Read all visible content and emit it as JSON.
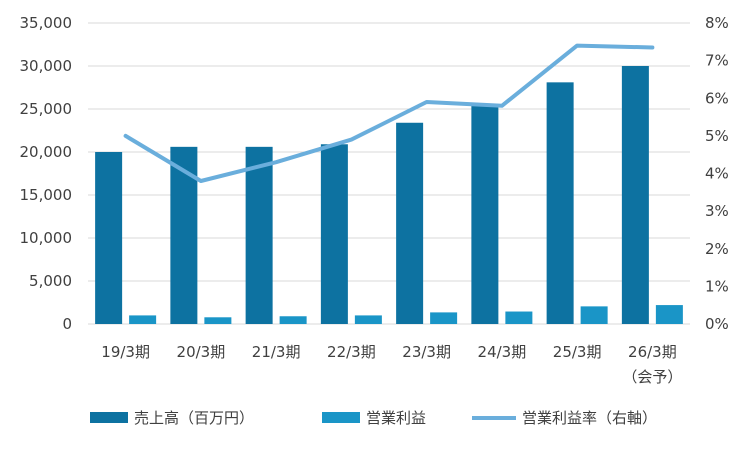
{
  "chart_data": {
    "type": "bar",
    "categories": [
      "19/3期",
      "20/3期",
      "21/3期",
      "22/3期",
      "23/3期",
      "24/3期",
      "25/3期",
      "26/3期"
    ],
    "category_sublabels": [
      "",
      "",
      "",
      "",
      "",
      "",
      "",
      "（会予）"
    ],
    "series": [
      {
        "name": "売上高（百万円）",
        "type": "bar",
        "axis": "left",
        "color": "#0d72a1",
        "values": [
          20000,
          20600,
          20600,
          20900,
          23400,
          25500,
          28100,
          30000
        ]
      },
      {
        "name": "営業利益",
        "type": "bar",
        "axis": "left",
        "color": "#1a95c7",
        "values": [
          1000,
          780,
          900,
          1000,
          1350,
          1450,
          2050,
          2200
        ]
      },
      {
        "name": "営業利益率（右軸）",
        "type": "line",
        "axis": "right",
        "color": "#6aaedc",
        "values": [
          5.0,
          3.8,
          4.3,
          4.9,
          5.9,
          5.8,
          7.4,
          7.35
        ]
      }
    ],
    "y_left": {
      "min": 0,
      "max": 35000,
      "step": 5000,
      "tick_labels": [
        "0",
        "5,000",
        "10,000",
        "15,000",
        "20,000",
        "25,000",
        "30,000",
        "35,000"
      ]
    },
    "y_right": {
      "min": 0,
      "max": 8,
      "step": 1,
      "tick_labels": [
        "0%",
        "1%",
        "2%",
        "3%",
        "4%",
        "5%",
        "6%",
        "7%",
        "8%"
      ]
    },
    "grid": true,
    "legend_position": "bottom"
  }
}
